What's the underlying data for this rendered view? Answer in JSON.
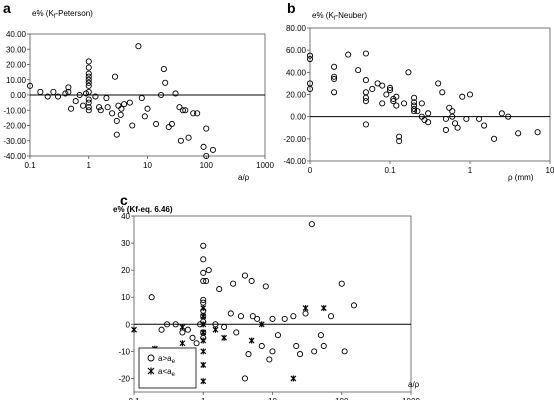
{
  "chart_data": [
    {
      "panel": "a",
      "type": "scatter",
      "ylabel": "e% (K",
      "ylabel_sub": "f",
      "ylabel_tail": "-Peterson)",
      "xlabel": "a/ρ",
      "xscale": "log",
      "xlim": [
        0.1,
        1000
      ],
      "ylim": [
        -40,
        40
      ],
      "x_ticks": [
        "0.1",
        "1",
        "10",
        "100",
        "1000"
      ],
      "y_ticks": [
        "40.00",
        "30.00",
        "20.00",
        "10.00",
        "0.00",
        "-10.00",
        "-20.00",
        "-30.00",
        "-40.00"
      ],
      "points": [
        [
          0.1,
          6
        ],
        [
          0.15,
          2
        ],
        [
          0.2,
          -1
        ],
        [
          0.25,
          2
        ],
        [
          0.3,
          -1
        ],
        [
          0.4,
          1
        ],
        [
          0.45,
          5
        ],
        [
          0.45,
          2
        ],
        [
          0.5,
          -9
        ],
        [
          0.6,
          -4
        ],
        [
          0.7,
          0
        ],
        [
          0.8,
          -7
        ],
        [
          1,
          22
        ],
        [
          1,
          18
        ],
        [
          1,
          14
        ],
        [
          1,
          12
        ],
        [
          1,
          10
        ],
        [
          1,
          8
        ],
        [
          1,
          6
        ],
        [
          1,
          -3
        ],
        [
          1,
          -5
        ],
        [
          1,
          -8
        ],
        [
          1,
          -10
        ],
        [
          1,
          2
        ],
        [
          0.9,
          1
        ],
        [
          1.3,
          -1
        ],
        [
          1.5,
          -8
        ],
        [
          1.6,
          -10
        ],
        [
          2,
          -2
        ],
        [
          2.1,
          -8
        ],
        [
          2.5,
          -12
        ],
        [
          2.8,
          12
        ],
        [
          3,
          -17
        ],
        [
          3,
          -26
        ],
        [
          3.2,
          -7
        ],
        [
          3.5,
          -13
        ],
        [
          3.6,
          -9
        ],
        [
          4,
          -6
        ],
        [
          5,
          -5
        ],
        [
          5.5,
          -20
        ],
        [
          7,
          32
        ],
        [
          8,
          -2
        ],
        [
          9,
          -14
        ],
        [
          10,
          -9
        ],
        [
          14,
          -19
        ],
        [
          17,
          0
        ],
        [
          19,
          17
        ],
        [
          20,
          8
        ],
        [
          23,
          -21
        ],
        [
          26,
          -19
        ],
        [
          30,
          1
        ],
        [
          35,
          -8
        ],
        [
          37,
          -30
        ],
        [
          40,
          -10
        ],
        [
          44,
          -10
        ],
        [
          50,
          -28
        ],
        [
          60,
          -12
        ],
        [
          70,
          -12
        ],
        [
          90,
          -34
        ],
        [
          100,
          -40
        ],
        [
          100,
          -22
        ],
        [
          130,
          -36
        ]
      ]
    },
    {
      "panel": "b",
      "type": "scatter",
      "ylabel": "e% (K",
      "ylabel_sub": "f",
      "ylabel_tail": "-Neuber)",
      "xlabel": "ρ (mm)",
      "xscale": "log",
      "xlim": [
        0.01,
        10
      ],
      "ylim": [
        -40,
        80
      ],
      "x_ticks": [
        "0",
        "0.1",
        "1",
        "10"
      ],
      "y_ticks": [
        "80.00",
        "60.00",
        "40.00",
        "20.00",
        "0.00",
        "-20.00",
        "-40.00"
      ],
      "points": [
        [
          0.01,
          55
        ],
        [
          0.01,
          52
        ],
        [
          0.01,
          30
        ],
        [
          0.01,
          25
        ],
        [
          0.02,
          45
        ],
        [
          0.02,
          36
        ],
        [
          0.02,
          34
        ],
        [
          0.02,
          22
        ],
        [
          0.03,
          56
        ],
        [
          0.04,
          42
        ],
        [
          0.05,
          57
        ],
        [
          0.05,
          33
        ],
        [
          0.05,
          22
        ],
        [
          0.05,
          17
        ],
        [
          0.05,
          14
        ],
        [
          0.05,
          -7
        ],
        [
          0.06,
          25
        ],
        [
          0.07,
          30
        ],
        [
          0.08,
          28
        ],
        [
          0.08,
          12
        ],
        [
          0.09,
          20
        ],
        [
          0.1,
          26
        ],
        [
          0.1,
          24
        ],
        [
          0.11,
          16
        ],
        [
          0.11,
          14
        ],
        [
          0.12,
          10
        ],
        [
          0.12,
          18
        ],
        [
          0.13,
          -18
        ],
        [
          0.13,
          -22
        ],
        [
          0.15,
          12
        ],
        [
          0.17,
          40
        ],
        [
          0.2,
          17
        ],
        [
          0.2,
          13
        ],
        [
          0.2,
          10
        ],
        [
          0.2,
          7
        ],
        [
          0.2,
          5
        ],
        [
          0.22,
          5
        ],
        [
          0.25,
          12
        ],
        [
          0.25,
          0
        ],
        [
          0.27,
          -3
        ],
        [
          0.3,
          -5
        ],
        [
          0.3,
          3
        ],
        [
          0.4,
          30
        ],
        [
          0.45,
          22
        ],
        [
          0.5,
          -2
        ],
        [
          0.5,
          -12
        ],
        [
          0.55,
          8
        ],
        [
          0.6,
          5
        ],
        [
          0.6,
          0
        ],
        [
          0.65,
          -6
        ],
        [
          0.7,
          -10
        ],
        [
          0.8,
          18
        ],
        [
          0.9,
          -2
        ],
        [
          1,
          20
        ],
        [
          1.3,
          -2
        ],
        [
          1.5,
          -8
        ],
        [
          2,
          -20
        ],
        [
          2.5,
          3
        ],
        [
          3,
          0
        ],
        [
          4,
          -15
        ],
        [
          7,
          -14
        ]
      ]
    },
    {
      "panel": "c",
      "type": "scatter",
      "ylabel": "e% (Kf-eq. 6.46)",
      "xlabel": "a/ρ",
      "xscale": "log",
      "xlim": [
        0.1,
        1000
      ],
      "ylim": [
        -25,
        40
      ],
      "x_ticks": [
        "0.1",
        "1",
        "10",
        "100",
        "1000"
      ],
      "y_ticks": [
        "40",
        "30",
        "20",
        "10",
        "0",
        "-10",
        "-20"
      ],
      "legend": [
        {
          "marker": "circle",
          "label": "a>a",
          "sub": "e"
        },
        {
          "marker": "star",
          "label": "a<a",
          "sub": "e"
        }
      ],
      "series": [
        {
          "name": "a>ae",
          "marker": "circle",
          "points": [
            [
              0.18,
              10
            ],
            [
              0.25,
              -2
            ],
            [
              0.3,
              0
            ],
            [
              0.4,
              0
            ],
            [
              0.5,
              -3
            ],
            [
              0.6,
              -2
            ],
            [
              0.7,
              -5
            ],
            [
              0.8,
              -7
            ],
            [
              0.9,
              0
            ],
            [
              1,
              29
            ],
            [
              1,
              24
            ],
            [
              1,
              19
            ],
            [
              1,
              16
            ],
            [
              1,
              9
            ],
            [
              1,
              8
            ],
            [
              1,
              5
            ],
            [
              1,
              3
            ],
            [
              1,
              1
            ],
            [
              1,
              -3
            ],
            [
              1,
              -5
            ],
            [
              1.1,
              16
            ],
            [
              1.2,
              20
            ],
            [
              1.5,
              0
            ],
            [
              1.7,
              13
            ],
            [
              2,
              -1
            ],
            [
              2.5,
              4
            ],
            [
              2.7,
              15
            ],
            [
              3,
              -3
            ],
            [
              3.5,
              3
            ],
            [
              4,
              -20
            ],
            [
              4,
              18
            ],
            [
              4.5,
              -11
            ],
            [
              5,
              16
            ],
            [
              5.2,
              3
            ],
            [
              6,
              2
            ],
            [
              7,
              -8
            ],
            [
              8,
              14
            ],
            [
              9,
              -13
            ],
            [
              10,
              2
            ],
            [
              10,
              -10
            ],
            [
              12,
              -4
            ],
            [
              15,
              2
            ],
            [
              20,
              3
            ],
            [
              22,
              -8
            ],
            [
              25,
              -11
            ],
            [
              30,
              4
            ],
            [
              37,
              37
            ],
            [
              40,
              -10
            ],
            [
              50,
              -4
            ],
            [
              55,
              -8
            ],
            [
              70,
              3
            ],
            [
              100,
              15
            ],
            [
              110,
              -10
            ],
            [
              150,
              7
            ]
          ]
        },
        {
          "name": "a<ae",
          "marker": "star",
          "points": [
            [
              0.1,
              -2
            ],
            [
              0.2,
              -9
            ],
            [
              0.5,
              -7
            ],
            [
              0.5,
              -1
            ],
            [
              1,
              6
            ],
            [
              1,
              3
            ],
            [
              1,
              0
            ],
            [
              1,
              -3
            ],
            [
              1,
              -6
            ],
            [
              1,
              -10
            ],
            [
              1,
              -15
            ],
            [
              1,
              -21
            ],
            [
              1.5,
              -2
            ],
            [
              2,
              -5
            ],
            [
              5,
              -6
            ],
            [
              7,
              0
            ],
            [
              20,
              -20
            ],
            [
              30,
              6
            ],
            [
              55,
              6
            ]
          ]
        }
      ]
    }
  ]
}
